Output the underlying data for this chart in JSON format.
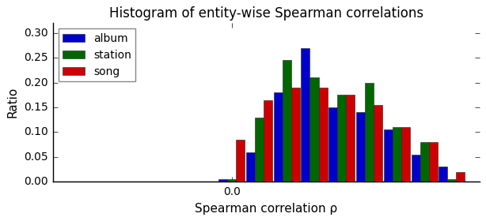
{
  "title": "Histogram of entity-wise Spearman correlations",
  "xlabel": "Spearman correlation ρ",
  "ylabel": "Ratio",
  "series": [
    "album",
    "station",
    "song"
  ],
  "colors": [
    "#0000cc",
    "#006600",
    "#cc0000"
  ],
  "bin_centers": [
    -0.5,
    -0.4,
    -0.3,
    -0.2,
    -0.1,
    0.0,
    0.1,
    0.2,
    0.3,
    0.4,
    0.5,
    0.6,
    0.7,
    0.8
  ],
  "bin_width": 0.1,
  "album": [
    0.001,
    0.001,
    0.001,
    0.001,
    0.001,
    0.005,
    0.06,
    0.18,
    0.27,
    0.15,
    0.14,
    0.105,
    0.055,
    0.03
  ],
  "station": [
    0.0,
    0.001,
    0.0,
    0.001,
    0.001,
    0.005,
    0.13,
    0.245,
    0.21,
    0.175,
    0.2,
    0.11,
    0.08,
    0.005
  ],
  "song": [
    0.0,
    0.0,
    0.001,
    0.0,
    0.001,
    0.085,
    0.165,
    0.19,
    0.19,
    0.175,
    0.155,
    0.11,
    0.08,
    0.02
  ],
  "ylim": [
    0.0,
    0.32
  ],
  "yticks": [
    0.0,
    0.05,
    0.1,
    0.15,
    0.2,
    0.25,
    0.3
  ],
  "xlim": [
    -0.65,
    0.9
  ],
  "xticks": [
    0.0
  ],
  "xticklabels": [
    "0.0"
  ],
  "legend_loc": "upper left",
  "legend_fontsize": 10,
  "title_fontsize": 12,
  "label_fontsize": 11,
  "tick_fontsize": 10,
  "background_color": "#ffffff"
}
